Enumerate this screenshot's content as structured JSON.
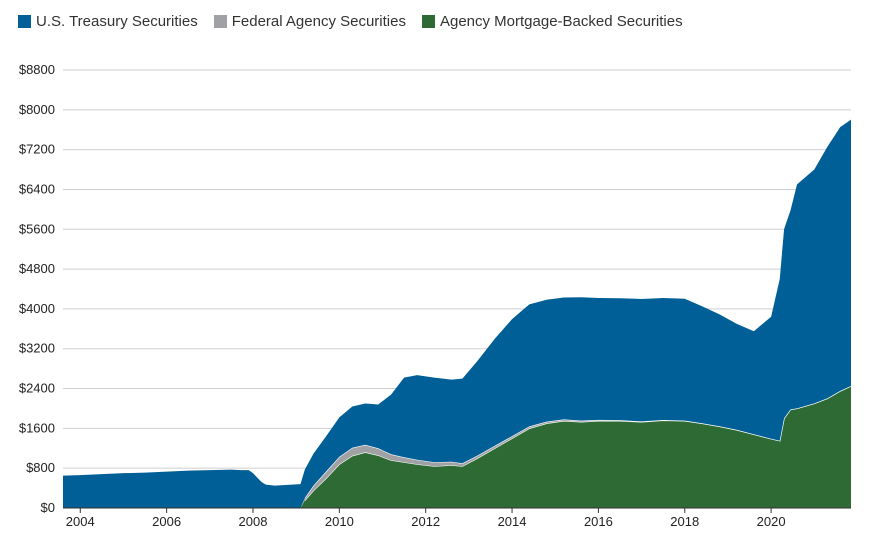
{
  "chart_data": {
    "type": "area",
    "stacked": true,
    "title": "",
    "xlabel": "",
    "ylabel": "",
    "xlim": [
      2003.6,
      2021.85
    ],
    "ylim": [
      0,
      8800
    ],
    "y_ticks": [
      0,
      800,
      1600,
      2400,
      3200,
      4000,
      4800,
      5600,
      6400,
      7200,
      8000,
      8800
    ],
    "y_tick_labels": [
      "$0",
      "$800",
      "$1600",
      "$2400",
      "$3200",
      "$4000",
      "$4800",
      "$5600",
      "$6400",
      "$7200",
      "$8000",
      "$8800"
    ],
    "x_ticks": [
      2004,
      2006,
      2008,
      2010,
      2012,
      2014,
      2016,
      2018,
      2020
    ],
    "x_tick_labels": [
      "2004",
      "2006",
      "2008",
      "2010",
      "2012",
      "2014",
      "2016",
      "2018",
      "2020"
    ],
    "grid": "horizontal",
    "legend_position": "top-left",
    "series": [
      {
        "name": "Agency Mortgage-Backed Securities",
        "color": "#2e6b34",
        "x": [
          2003.6,
          2009.1,
          2009.2,
          2009.4,
          2009.7,
          2010.0,
          2010.3,
          2010.6,
          2010.9,
          2011.2,
          2011.5,
          2011.8,
          2012.2,
          2012.6,
          2012.85,
          2013.2,
          2013.6,
          2014.0,
          2014.4,
          2014.8,
          2015.2,
          2015.6,
          2016.0,
          2016.5,
          2017.0,
          2017.5,
          2018.0,
          2018.4,
          2018.8,
          2019.2,
          2019.6,
          2020.0,
          2020.2,
          2020.3,
          2020.45,
          2020.6,
          2021.0,
          2021.3,
          2021.6,
          2021.85
        ],
        "values": [
          0,
          0,
          150,
          350,
          600,
          880,
          1050,
          1120,
          1060,
          960,
          920,
          880,
          840,
          860,
          840,
          1000,
          1200,
          1400,
          1600,
          1700,
          1750,
          1730,
          1750,
          1750,
          1730,
          1760,
          1750,
          1700,
          1640,
          1570,
          1480,
          1390,
          1350,
          1800,
          1980,
          2000,
          2100,
          2200,
          2350,
          2450
        ]
      },
      {
        "name": "Federal Agency Securities",
        "color": "#a0a1a4",
        "x": [
          2003.6,
          2009.1,
          2009.2,
          2009.4,
          2009.7,
          2010.0,
          2010.3,
          2010.6,
          2010.9,
          2011.2,
          2011.5,
          2011.8,
          2012.2,
          2012.6,
          2012.85,
          2013.2,
          2013.6,
          2014.0,
          2014.4,
          2014.8,
          2015.2,
          2015.6,
          2016.0,
          2016.5,
          2017.0,
          2017.5,
          2018.0,
          2018.4,
          2018.8,
          2019.2,
          2019.6,
          2020.0,
          2020.2,
          2020.3,
          2020.45,
          2020.6,
          2021.0,
          2021.3,
          2021.6,
          2021.85
        ],
        "values": [
          0,
          0,
          50,
          100,
          140,
          150,
          160,
          150,
          140,
          120,
          100,
          90,
          80,
          70,
          60,
          55,
          50,
          45,
          40,
          35,
          30,
          25,
          20,
          15,
          10,
          8,
          5,
          3,
          2,
          2,
          2,
          2,
          2,
          2,
          2,
          2,
          2,
          2,
          2,
          2
        ]
      },
      {
        "name": "U.S. Treasury Securities",
        "color": "#005f96",
        "x": [
          2003.6,
          2004.0,
          2004.5,
          2005.0,
          2005.5,
          2006.0,
          2006.5,
          2007.0,
          2007.5,
          2007.7,
          2007.9,
          2008.0,
          2008.2,
          2008.3,
          2008.5,
          2009.1,
          2009.2,
          2009.4,
          2009.7,
          2010.0,
          2010.3,
          2010.6,
          2010.9,
          2011.2,
          2011.5,
          2011.8,
          2012.2,
          2012.6,
          2012.85,
          2013.2,
          2013.6,
          2014.0,
          2014.4,
          2014.8,
          2015.2,
          2015.6,
          2016.0,
          2016.5,
          2017.0,
          2017.5,
          2018.0,
          2018.4,
          2018.8,
          2019.2,
          2019.6,
          2020.0,
          2020.2,
          2020.3,
          2020.45,
          2020.6,
          2021.0,
          2021.3,
          2021.6,
          2021.85
        ],
        "values": [
          650,
          660,
          680,
          700,
          710,
          730,
          750,
          760,
          770,
          760,
          760,
          700,
          520,
          470,
          450,
          480,
          570,
          640,
          710,
          790,
          830,
          830,
          880,
          1200,
          1600,
          1700,
          1700,
          1650,
          1700,
          1900,
          2150,
          2350,
          2450,
          2450,
          2450,
          2480,
          2450,
          2450,
          2460,
          2450,
          2450,
          2350,
          2250,
          2130,
          2070,
          2450,
          3250,
          3800,
          4000,
          4500,
          4700,
          5050,
          5300,
          5350
        ]
      }
    ]
  }
}
